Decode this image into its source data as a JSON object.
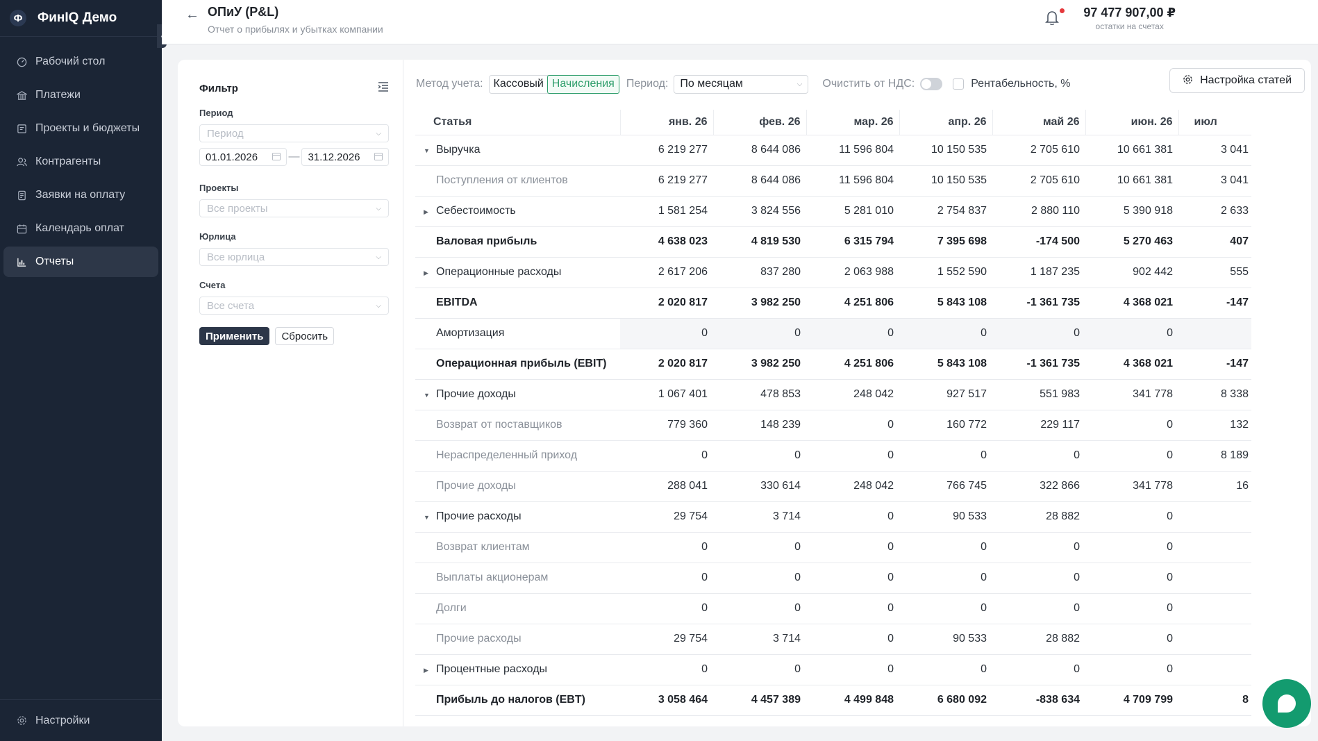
{
  "sidebar": {
    "logo_letter": "Ф",
    "brand": "ФинIQ Демо",
    "items": [
      {
        "label": "Рабочий стол",
        "icon": "dashboard-icon"
      },
      {
        "label": "Платежи",
        "icon": "bank-icon"
      },
      {
        "label": "Проекты и бюджеты",
        "icon": "briefcase-icon"
      },
      {
        "label": "Контрагенты",
        "icon": "users-icon"
      },
      {
        "label": "Заявки на оплату",
        "icon": "document-icon"
      },
      {
        "label": "Календарь оплат",
        "icon": "calendar-icon"
      },
      {
        "label": "Отчеты",
        "icon": "chart-icon",
        "active": true
      }
    ],
    "settings_label": "Настройки"
  },
  "header": {
    "title": "ОПиУ (P&L)",
    "subtitle": "Отчет о прибылях и убытках компании",
    "balance_value": "97 477 907,00 ₽",
    "balance_label": "остатки на счетах"
  },
  "filter": {
    "title": "Фильтр",
    "period_label": "Период",
    "period_placeholder": "Период",
    "date_from": "01.01.2026",
    "date_to": "31.12.2026",
    "projects_label": "Проекты",
    "projects_placeholder": "Все проекты",
    "legal_label": "Юрлица",
    "legal_placeholder": "Все юрлица",
    "accounts_label": "Счета",
    "accounts_placeholder": "Все счета",
    "apply": "Применить",
    "reset": "Сбросить"
  },
  "toolbar": {
    "method_label": "Метод учета:",
    "method_cash": "Кассовый",
    "method_accrual": "Начисления",
    "period_label": "Период:",
    "period_value": "По месяцам",
    "vat_label": "Очистить от НДС:",
    "profitability_label": "Рентабельность, %",
    "settings_button": "Настройка статей"
  },
  "table": {
    "first_header": "Статья",
    "months": [
      "янв. 26",
      "фев. 26",
      "мар. 26",
      "апр. 26",
      "май 26",
      "июн. 26",
      "июл"
    ],
    "rows": [
      {
        "name": "Выручка",
        "type": "group-open",
        "values": [
          "6 219 277",
          "8 644 086",
          "11 596 804",
          "10 150 535",
          "2 705 610",
          "10 661 381",
          "3 041"
        ]
      },
      {
        "name": "Поступления от клиентов",
        "type": "sub",
        "values": [
          "6 219 277",
          "8 644 086",
          "11 596 804",
          "10 150 535",
          "2 705 610",
          "10 661 381",
          "3 041"
        ]
      },
      {
        "name": "Себестоимость",
        "type": "group-closed",
        "values": [
          "1 581 254",
          "3 824 556",
          "5 281 010",
          "2 754 837",
          "2 880 110",
          "5 390 918",
          "2 633"
        ]
      },
      {
        "name": "Валовая прибыль",
        "type": "total",
        "values": [
          "4 638 023",
          "4 819 530",
          "6 315 794",
          "7 395 698",
          "-174 500",
          "5 270 463",
          "407"
        ]
      },
      {
        "name": "Операционные расходы",
        "type": "group-closed",
        "values": [
          "2 617 206",
          "837 280",
          "2 063 988",
          "1 552 590",
          "1 187 235",
          "902 442",
          "555"
        ]
      },
      {
        "name": "EBITDA",
        "type": "total",
        "values": [
          "2 020 817",
          "3 982 250",
          "4 251 806",
          "5 843 108",
          "-1 361 735",
          "4 368 021",
          "-147 "
        ]
      },
      {
        "name": "Амортизация",
        "type": "plain-hl",
        "values": [
          "0",
          "0",
          "0",
          "0",
          "0",
          "0",
          ""
        ]
      },
      {
        "name": "Операционная прибыль (EBIT)",
        "type": "total",
        "values": [
          "2 020 817",
          "3 982 250",
          "4 251 806",
          "5 843 108",
          "-1 361 735",
          "4 368 021",
          "-147 "
        ]
      },
      {
        "name": "Прочие доходы",
        "type": "group-open",
        "values": [
          "1 067 401",
          "478 853",
          "248 042",
          "927 517",
          "551 983",
          "341 778",
          "8 338"
        ]
      },
      {
        "name": "Возврат от поставщиков",
        "type": "sub",
        "values": [
          "779 360",
          "148 239",
          "0",
          "160 772",
          "229 117",
          "0",
          "132"
        ]
      },
      {
        "name": "Нераспределенный приход",
        "type": "sub",
        "values": [
          "0",
          "0",
          "0",
          "0",
          "0",
          "0",
          "8 189"
        ]
      },
      {
        "name": "Прочие доходы",
        "type": "sub",
        "values": [
          "288 041",
          "330 614",
          "248 042",
          "766 745",
          "322 866",
          "341 778",
          "16"
        ]
      },
      {
        "name": "Прочие расходы",
        "type": "group-open",
        "values": [
          "29 754",
          "3 714",
          "0",
          "90 533",
          "28 882",
          "0",
          ""
        ]
      },
      {
        "name": "Возврат клиентам",
        "type": "sub",
        "values": [
          "0",
          "0",
          "0",
          "0",
          "0",
          "0",
          ""
        ]
      },
      {
        "name": "Выплаты акционерам",
        "type": "sub",
        "values": [
          "0",
          "0",
          "0",
          "0",
          "0",
          "0",
          ""
        ]
      },
      {
        "name": "Долги",
        "type": "sub",
        "values": [
          "0",
          "0",
          "0",
          "0",
          "0",
          "0",
          ""
        ]
      },
      {
        "name": "Прочие расходы",
        "type": "sub",
        "values": [
          "29 754",
          "3 714",
          "0",
          "90 533",
          "28 882",
          "0",
          ""
        ]
      },
      {
        "name": "Процентные расходы",
        "type": "group-closed",
        "values": [
          "0",
          "0",
          "0",
          "0",
          "0",
          "0",
          ""
        ]
      },
      {
        "name": "Прибыль до налогов (EBT)",
        "type": "total",
        "values": [
          "3 058 464",
          "4 457 389",
          "4 499 848",
          "6 680 092",
          "-838 634",
          "4 709 799",
          "8"
        ]
      }
    ]
  },
  "colors": {
    "sidebar_bg": "#1b2535",
    "accent_green": "#2e9e6b",
    "notification_red": "#e5383b",
    "chat_green": "#139b6f"
  }
}
